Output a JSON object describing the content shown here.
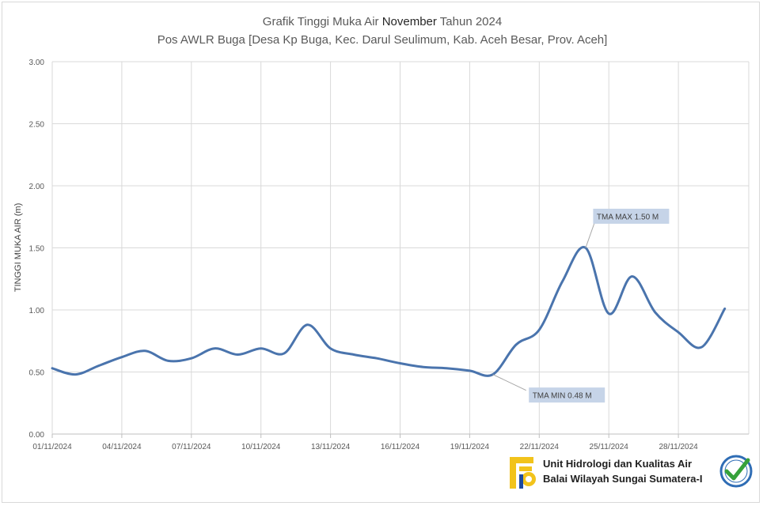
{
  "chart_data": {
    "type": "line",
    "title": "Grafik Tinggi Muka Air",
    "title_month": "November",
    "title_year_text": "Tahun 2024",
    "subtitle": "Pos AWLR Buga [Desa Kp Buga, Kec. Darul Seulimum, Kab. Aceh Besar, Prov. Aceh]",
    "ylabel": "TINGGI MUKA AIR (m)",
    "xlabel": "",
    "ylim": [
      0,
      3
    ],
    "yticks": [
      "0.00",
      "0.50",
      "1.00",
      "1.50",
      "2.00",
      "2.50",
      "3.00"
    ],
    "xlim": [
      1,
      31
    ],
    "xticks": [
      {
        "day": 1,
        "label": "01/11/2024"
      },
      {
        "day": 4,
        "label": "04/11/2024"
      },
      {
        "day": 7,
        "label": "07/11/2024"
      },
      {
        "day": 10,
        "label": "10/11/2024"
      },
      {
        "day": 13,
        "label": "13/11/2024"
      },
      {
        "day": 16,
        "label": "16/11/2024"
      },
      {
        "day": 19,
        "label": "19/11/2024"
      },
      {
        "day": 22,
        "label": "22/11/2024"
      },
      {
        "day": 25,
        "label": "25/11/2024"
      },
      {
        "day": 28,
        "label": "28/11/2024"
      }
    ],
    "grid": true,
    "series": [
      {
        "color": "#4a74ad",
        "x": [
          1,
          2,
          3,
          4,
          5,
          6,
          7,
          8,
          9,
          10,
          11,
          12,
          13,
          14,
          15,
          16,
          17,
          18,
          19,
          20,
          21,
          22,
          23,
          24,
          25,
          26,
          27,
          28,
          29,
          30
        ],
        "y": [
          0.53,
          0.48,
          0.55,
          0.62,
          0.67,
          0.59,
          0.61,
          0.69,
          0.64,
          0.69,
          0.65,
          0.88,
          0.69,
          0.64,
          0.61,
          0.57,
          0.54,
          0.53,
          0.51,
          0.48,
          0.72,
          0.84,
          1.23,
          1.5,
          0.97,
          1.27,
          0.98,
          0.82,
          0.7,
          1.01
        ]
      }
    ],
    "annotations": [
      {
        "text": "TMA MAX  1.50  M",
        "x": 24,
        "y": 1.5
      },
      {
        "text": "TMA MIN 0.48  M",
        "x": 20,
        "y": 0.48
      }
    ]
  },
  "footer": {
    "org_line1": "Unit Hidrologi dan Kualitas Air",
    "org_line2": "Balai Wilayah Sungai Sumatera-I",
    "colors": {
      "logo_yellow": "#f2c31b",
      "logo_blue": "#1e4aa0",
      "cert_blue": "#2f6db5",
      "cert_green": "#36a13a"
    }
  }
}
